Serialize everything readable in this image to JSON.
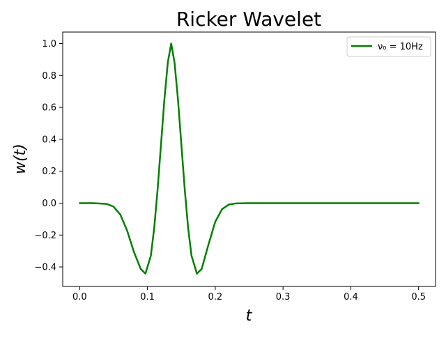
{
  "chart_data": {
    "type": "line",
    "title": "Ricker Wavelet",
    "xlabel": "t",
    "ylabel": "w(t)",
    "xlim": [
      -0.025,
      0.525
    ],
    "ylim": [
      -0.522,
      1.072
    ],
    "xticks": [
      {
        "value": 0.0,
        "label": "0.0"
      },
      {
        "value": 0.1,
        "label": "0.1"
      },
      {
        "value": 0.2,
        "label": "0.2"
      },
      {
        "value": 0.3,
        "label": "0.3"
      },
      {
        "value": 0.4,
        "label": "0.4"
      },
      {
        "value": 0.5,
        "label": "0.5"
      }
    ],
    "yticks": [
      {
        "value": -0.4,
        "label": "−0.4"
      },
      {
        "value": -0.2,
        "label": "−0.2"
      },
      {
        "value": 0.0,
        "label": "0.0"
      },
      {
        "value": 0.2,
        "label": "0.2"
      },
      {
        "value": 0.4,
        "label": "0.4"
      },
      {
        "value": 0.6,
        "label": "0.6"
      },
      {
        "value": 0.8,
        "label": "0.8"
      },
      {
        "value": 1.0,
        "label": "1.0"
      }
    ],
    "grid": false,
    "legend_position": "top-right",
    "series": [
      {
        "name": "ν₀ = 10Hz",
        "color": "#008000",
        "x": [
          0.0,
          0.02,
          0.04,
          0.05,
          0.06,
          0.07,
          0.08,
          0.09,
          0.097,
          0.105,
          0.11,
          0.115,
          0.12,
          0.125,
          0.13,
          0.135,
          0.14,
          0.145,
          0.15,
          0.155,
          0.16,
          0.165,
          0.173,
          0.18,
          0.19,
          0.2,
          0.21,
          0.22,
          0.23,
          0.25,
          0.3,
          0.35,
          0.4,
          0.45,
          0.5
        ],
        "y": [
          0.0,
          0.0,
          -0.005,
          -0.022,
          -0.072,
          -0.172,
          -0.305,
          -0.412,
          -0.442,
          -0.33,
          -0.155,
          0.087,
          0.368,
          0.65,
          0.88,
          1.0,
          0.88,
          0.65,
          0.368,
          0.087,
          -0.155,
          -0.33,
          -0.442,
          -0.412,
          -0.26,
          -0.117,
          -0.038,
          -0.009,
          -0.002,
          0.0,
          0.0,
          0.0,
          0.0,
          0.0,
          0.0
        ]
      }
    ]
  }
}
